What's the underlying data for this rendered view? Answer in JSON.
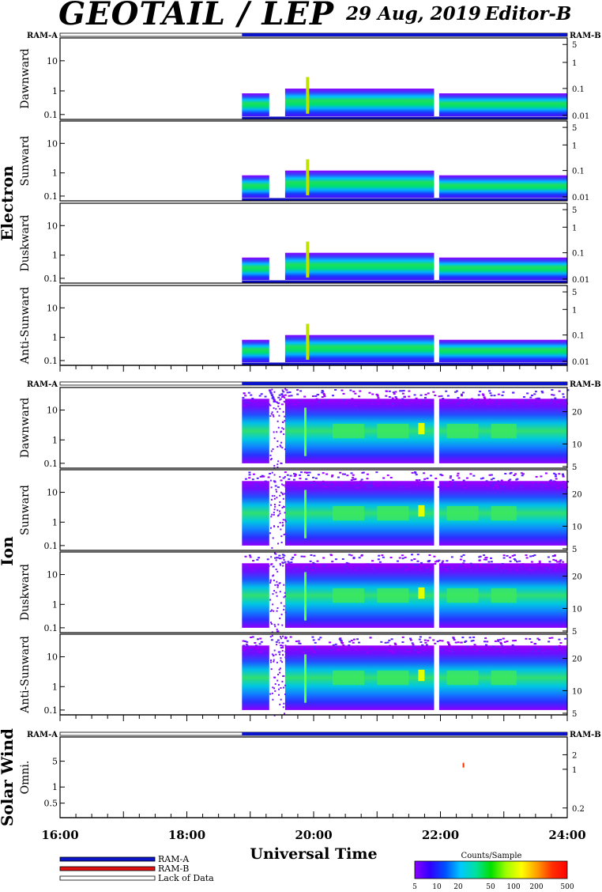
{
  "header": {
    "instrument": "GEOTAIL / LEP",
    "date": "29 Aug, 2019",
    "editor": "Editor-B"
  },
  "ram_bar": {
    "left_label": "RAM-A",
    "right_label": "RAM-B",
    "ram_a_until_hour": 18.87
  },
  "sections": [
    {
      "name": "Electron",
      "panels": [
        {
          "label": "Dawnward",
          "left_ticks": [
            "10",
            "1",
            "0.1"
          ],
          "right_ticks": [
            "5",
            "1",
            "0.1",
            "0.01"
          ]
        },
        {
          "label": "Sunward",
          "left_ticks": [
            "10",
            "1",
            "0.1"
          ],
          "right_ticks": [
            "5",
            "1",
            "0.1",
            "0.01"
          ]
        },
        {
          "label": "Duskward",
          "left_ticks": [
            "10",
            "1",
            "0.1"
          ],
          "right_ticks": [
            "5",
            "1",
            "0.1",
            "0.01"
          ]
        },
        {
          "label": "Anti-Sunward",
          "left_ticks": [
            "10",
            "1",
            "0.1"
          ],
          "right_ticks": [
            "5",
            "1",
            "0.1",
            "0.01"
          ]
        }
      ]
    },
    {
      "name": "Ion",
      "panels": [
        {
          "label": "Dawnward",
          "left_ticks": [
            "10",
            "1",
            "0.1"
          ],
          "right_ticks": [
            "20",
            "10",
            "5"
          ]
        },
        {
          "label": "Sunward",
          "left_ticks": [
            "10",
            "1",
            "0.1"
          ],
          "right_ticks": [
            "20",
            "10",
            "5"
          ]
        },
        {
          "label": "Duskward",
          "left_ticks": [
            "10",
            "1",
            "0.1"
          ],
          "right_ticks": [
            "20",
            "10",
            "5"
          ]
        },
        {
          "label": "Anti-Sunward",
          "left_ticks": [
            "10",
            "1",
            "0.1"
          ],
          "right_ticks": [
            "20",
            "10",
            "5"
          ]
        }
      ]
    },
    {
      "name": "Solar Wind",
      "panels": [
        {
          "label": "Omni.",
          "left_ticks": [
            "5",
            "1",
            "0.5"
          ],
          "right_ticks": [
            "2",
            "1",
            "0.2"
          ]
        }
      ]
    }
  ],
  "time_axis": {
    "tick_labels": [
      "16:00",
      "18:00",
      "20:00",
      "22:00",
      "24:00"
    ],
    "xlabel": "Universal Time"
  },
  "legend": {
    "items": [
      {
        "label": "RAM-A",
        "color": "#0a14c8"
      },
      {
        "label": "RAM-B",
        "color": "#dd1111"
      },
      {
        "label": "Lack of Data",
        "color": "#ffffff"
      }
    ]
  },
  "colorbar": {
    "title": "Counts/Sample",
    "tick_labels": [
      "5",
      "10",
      "20",
      "50",
      "100",
      "200",
      "500"
    ],
    "stops": [
      "#8a00ff",
      "#3000ff",
      "#0050ff",
      "#00c8ff",
      "#00e0a0",
      "#00e000",
      "#a0ff00",
      "#ffff00",
      "#ffa000",
      "#ff3000",
      "#ff0000"
    ]
  },
  "chart_data": {
    "type": "heatmap",
    "title": "GEOTAIL / LEP",
    "xlabel": "Universal Time",
    "x_range_hours": [
      16,
      24
    ],
    "data_start_hour": 18.87,
    "data_gaps_hours": [
      [
        19.3,
        19.55
      ]
    ],
    "colorbar_range": [
      5,
      500
    ],
    "colorbar_units": "Counts/Sample"
  }
}
